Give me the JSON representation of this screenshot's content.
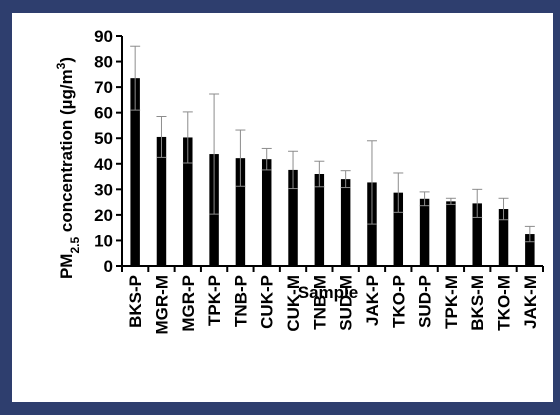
{
  "chart_data": {
    "type": "bar",
    "categories": [
      "BKS-P",
      "MGR-M",
      "MGR-P",
      "TPK-P",
      "TNB-P",
      "CUK-P",
      "CUK-M",
      "TNB-M",
      "SUD-M",
      "JAK-P",
      "TKO-P",
      "SUD-P",
      "TPK-M",
      "BKS-M",
      "TKO-M",
      "JAK-M"
    ],
    "series": [
      {
        "values": [
          73.5,
          50.5,
          50.3,
          43.8,
          42.2,
          41.8,
          37.6,
          36.0,
          34.0,
          32.7,
          28.7,
          26.3,
          25.3,
          24.5,
          22.3,
          12.5
        ],
        "error": [
          12.5,
          8.0,
          10.0,
          23.5,
          11.0,
          4.2,
          7.3,
          5.0,
          3.3,
          16.3,
          7.7,
          2.7,
          1.2,
          5.5,
          4.2,
          3.0
        ]
      }
    ],
    "xlabel": "Sample",
    "ylabel": {
      "prefix": "PM",
      "subscript": "2.5",
      "middle": " concentration (µg/m",
      "superscript": "3",
      "suffix": ")"
    },
    "ylim": [
      0,
      90
    ],
    "yticks": [
      0,
      10,
      20,
      30,
      40,
      50,
      60,
      70,
      80,
      90
    ],
    "colors": {
      "bar": "#000000",
      "error": "#8c8c8c",
      "background": "#2e3e6e"
    },
    "grid": false,
    "legend": "none"
  }
}
